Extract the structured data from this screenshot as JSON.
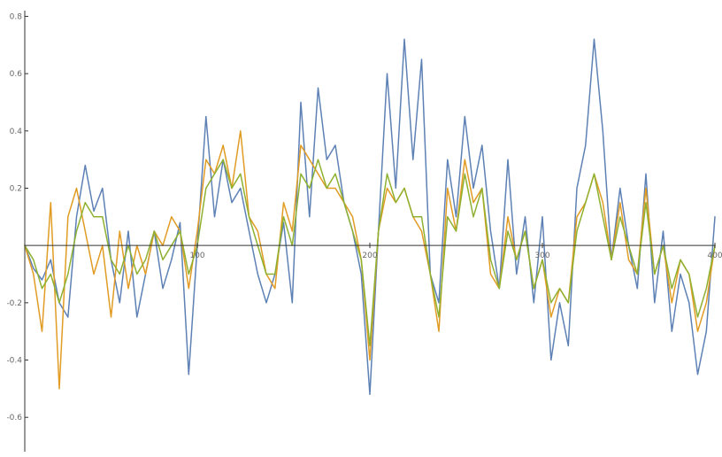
{
  "chart_data": {
    "type": "line",
    "title": "",
    "xlabel": "",
    "ylabel": "",
    "xlim": [
      0,
      400
    ],
    "ylim": [
      -0.72,
      0.82
    ],
    "xticks": [
      100,
      200,
      300,
      400
    ],
    "yticks": [
      -0.6,
      -0.4,
      -0.2,
      0.2,
      0.4,
      0.6,
      0.8
    ],
    "x_tick_labels": [
      "100",
      "200",
      "300",
      "400"
    ],
    "y_tick_labels": [
      "-0.6",
      "-0.4",
      "-0.2",
      "0.2",
      "0.4",
      "0.6",
      "0.8"
    ],
    "grid": false,
    "legend": "none",
    "x": [
      0,
      5,
      10,
      15,
      20,
      25,
      30,
      35,
      40,
      45,
      50,
      55,
      60,
      65,
      70,
      75,
      80,
      85,
      90,
      95,
      100,
      105,
      110,
      115,
      120,
      125,
      130,
      135,
      140,
      145,
      150,
      155,
      160,
      165,
      170,
      175,
      180,
      185,
      190,
      195,
      200,
      205,
      210,
      215,
      220,
      225,
      230,
      235,
      240,
      245,
      250,
      255,
      260,
      265,
      270,
      275,
      280,
      285,
      290,
      295,
      300,
      305,
      310,
      315,
      320,
      325,
      330,
      335,
      340,
      345,
      350,
      355,
      360,
      365,
      370,
      375,
      380,
      385,
      390,
      395,
      400
    ],
    "series": [
      {
        "color": "#5E81B5",
        "values": [
          0.0,
          -0.08,
          -0.12,
          -0.05,
          -0.2,
          -0.25,
          0.1,
          0.28,
          0.12,
          0.2,
          -0.05,
          -0.2,
          0.05,
          -0.25,
          -0.1,
          0.05,
          -0.15,
          -0.05,
          0.08,
          -0.45,
          0.0,
          0.45,
          0.1,
          0.3,
          0.15,
          0.2,
          0.05,
          -0.1,
          -0.2,
          -0.1,
          0.08,
          -0.2,
          0.5,
          0.1,
          0.55,
          0.3,
          0.35,
          0.15,
          0.05,
          -0.1,
          -0.52,
          0.05,
          0.6,
          0.2,
          0.72,
          0.3,
          0.65,
          -0.1,
          -0.2,
          0.3,
          0.1,
          0.45,
          0.2,
          0.35,
          0.05,
          -0.15,
          0.3,
          -0.1,
          0.1,
          -0.2,
          0.1,
          -0.4,
          -0.2,
          -0.35,
          0.2,
          0.35,
          0.72,
          0.4,
          -0.05,
          0.2,
          0.0,
          -0.15,
          0.25,
          -0.2,
          0.05,
          -0.3,
          -0.1,
          -0.2,
          -0.45,
          -0.3,
          0.1
        ]
      },
      {
        "color": "#E19C24",
        "values": [
          0.0,
          -0.1,
          -0.3,
          0.15,
          -0.5,
          0.1,
          0.2,
          0.05,
          -0.1,
          0.0,
          -0.25,
          0.05,
          -0.15,
          0.0,
          -0.1,
          0.05,
          0.0,
          0.1,
          0.05,
          -0.15,
          0.05,
          0.3,
          0.25,
          0.35,
          0.2,
          0.4,
          0.1,
          0.05,
          -0.1,
          -0.15,
          0.15,
          0.05,
          0.35,
          0.3,
          0.25,
          0.2,
          0.2,
          0.15,
          0.1,
          -0.05,
          -0.4,
          0.05,
          0.2,
          0.15,
          0.2,
          0.1,
          0.05,
          -0.1,
          -0.3,
          0.2,
          0.05,
          0.3,
          0.15,
          0.2,
          -0.1,
          -0.15,
          0.1,
          -0.05,
          0.05,
          -0.15,
          -0.05,
          -0.25,
          -0.15,
          -0.2,
          0.1,
          0.15,
          0.25,
          0.15,
          -0.05,
          0.15,
          -0.05,
          -0.1,
          0.2,
          -0.1,
          0.0,
          -0.2,
          -0.05,
          -0.1,
          -0.3,
          -0.2,
          0.0
        ]
      },
      {
        "color": "#8FB131",
        "values": [
          0.0,
          -0.05,
          -0.15,
          -0.1,
          -0.2,
          -0.1,
          0.05,
          0.15,
          0.1,
          0.1,
          -0.05,
          -0.1,
          0.0,
          -0.1,
          -0.05,
          0.05,
          -0.05,
          0.0,
          0.05,
          -0.1,
          0.0,
          0.2,
          0.25,
          0.3,
          0.2,
          0.25,
          0.1,
          0.0,
          -0.1,
          -0.1,
          0.1,
          0.0,
          0.25,
          0.2,
          0.3,
          0.2,
          0.25,
          0.15,
          0.05,
          -0.05,
          -0.35,
          0.05,
          0.25,
          0.15,
          0.2,
          0.1,
          0.1,
          -0.1,
          -0.25,
          0.1,
          0.05,
          0.25,
          0.1,
          0.2,
          -0.05,
          -0.15,
          0.05,
          -0.05,
          0.05,
          -0.15,
          -0.05,
          -0.2,
          -0.15,
          -0.2,
          0.05,
          0.15,
          0.25,
          0.1,
          -0.05,
          0.1,
          0.0,
          -0.1,
          0.15,
          -0.1,
          0.0,
          -0.15,
          -0.05,
          -0.1,
          -0.25,
          -0.15,
          0.0
        ]
      }
    ]
  }
}
